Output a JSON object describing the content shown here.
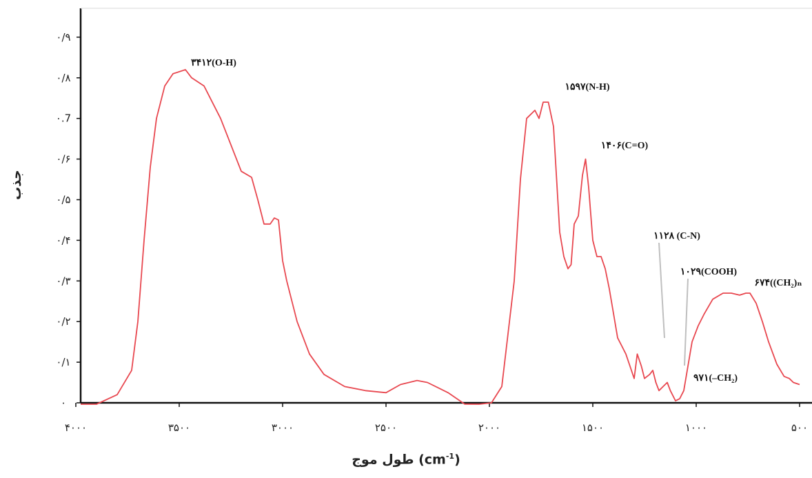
{
  "chart_data": {
    "type": "line",
    "title": "",
    "ylabel": "جذب",
    "xlabel": {
      "prefix": "طول موج (cm",
      "sup": "-1",
      "suffix": ")"
    },
    "xlim": [
      4000,
      400
    ],
    "ylim": [
      0,
      0.9
    ],
    "grid": false,
    "x_ticks": [
      {
        "value": 4000,
        "label": "۴۰۰۰"
      },
      {
        "value": 3500,
        "label": "۳۵۰۰"
      },
      {
        "value": 3000,
        "label": "۳۰۰۰"
      },
      {
        "value": 2500,
        "label": "۲۵۰۰"
      },
      {
        "value": 2000,
        "label": "۲۰۰۰"
      },
      {
        "value": 1500,
        "label": "۱۵۰۰"
      },
      {
        "value": 1000,
        "label": "۱۰۰۰"
      },
      {
        "value": 500,
        "label": "۵۰۰"
      }
    ],
    "y_ticks": [
      {
        "value": 0,
        "label": "۰"
      },
      {
        "value": 0.1,
        "label": "۰/۱"
      },
      {
        "value": 0.2,
        "label": "۰/۲"
      },
      {
        "value": 0.3,
        "label": "۰/۳"
      },
      {
        "value": 0.4,
        "label": "۰/۴"
      },
      {
        "value": 0.5,
        "label": "۰/۵"
      },
      {
        "value": 0.6,
        "label": "۰/۶"
      },
      {
        "value": 0.7,
        "label": "۰.7"
      },
      {
        "value": 0.8,
        "label": "۰/۸"
      },
      {
        "value": 0.9,
        "label": "۰/۹"
      }
    ],
    "series": [
      {
        "color": "#e8474f",
        "points": [
          [
            4000,
            -0.01
          ],
          [
            3900,
            -0.005
          ],
          [
            3800,
            0.02
          ],
          [
            3730,
            0.08
          ],
          [
            3700,
            0.2
          ],
          [
            3670,
            0.4
          ],
          [
            3640,
            0.58
          ],
          [
            3610,
            0.7
          ],
          [
            3570,
            0.78
          ],
          [
            3530,
            0.81
          ],
          [
            3470,
            0.82
          ],
          [
            3440,
            0.8
          ],
          [
            3380,
            0.78
          ],
          [
            3300,
            0.7
          ],
          [
            3200,
            0.57
          ],
          [
            3150,
            0.555
          ],
          [
            3120,
            0.5
          ],
          [
            3090,
            0.44
          ],
          [
            3060,
            0.44
          ],
          [
            3040,
            0.455
          ],
          [
            3020,
            0.45
          ],
          [
            3000,
            0.35
          ],
          [
            2980,
            0.3
          ],
          [
            2930,
            0.2
          ],
          [
            2870,
            0.12
          ],
          [
            2800,
            0.07
          ],
          [
            2700,
            0.04
          ],
          [
            2600,
            0.03
          ],
          [
            2500,
            0.025
          ],
          [
            2430,
            0.045
          ],
          [
            2350,
            0.055
          ],
          [
            2300,
            0.05
          ],
          [
            2200,
            0.025
          ],
          [
            2120,
            -0.003
          ],
          [
            2050,
            -0.005
          ],
          [
            1990,
            0.0
          ],
          [
            1940,
            0.04
          ],
          [
            1880,
            0.3
          ],
          [
            1850,
            0.55
          ],
          [
            1820,
            0.7
          ],
          [
            1780,
            0.72
          ],
          [
            1760,
            0.7
          ],
          [
            1740,
            0.74
          ],
          [
            1715,
            0.74
          ],
          [
            1690,
            0.68
          ],
          [
            1660,
            0.42
          ],
          [
            1640,
            0.36
          ],
          [
            1620,
            0.33
          ],
          [
            1605,
            0.34
          ],
          [
            1590,
            0.44
          ],
          [
            1570,
            0.46
          ],
          [
            1550,
            0.56
          ],
          [
            1535,
            0.6
          ],
          [
            1520,
            0.53
          ],
          [
            1500,
            0.4
          ],
          [
            1480,
            0.36
          ],
          [
            1460,
            0.36
          ],
          [
            1440,
            0.33
          ],
          [
            1420,
            0.28
          ],
          [
            1400,
            0.22
          ],
          [
            1380,
            0.16
          ],
          [
            1360,
            0.14
          ],
          [
            1340,
            0.12
          ],
          [
            1320,
            0.09
          ],
          [
            1300,
            0.06
          ],
          [
            1285,
            0.12
          ],
          [
            1265,
            0.09
          ],
          [
            1250,
            0.06
          ],
          [
            1225,
            0.07
          ],
          [
            1210,
            0.08
          ],
          [
            1195,
            0.05
          ],
          [
            1180,
            0.03
          ],
          [
            1160,
            0.04
          ],
          [
            1140,
            0.05
          ],
          [
            1125,
            0.03
          ],
          [
            1100,
            0.005
          ],
          [
            1080,
            0.01
          ],
          [
            1060,
            0.03
          ],
          [
            1020,
            0.15
          ],
          [
            990,
            0.19
          ],
          [
            960,
            0.22
          ],
          [
            920,
            0.255
          ],
          [
            870,
            0.27
          ],
          [
            830,
            0.27
          ],
          [
            790,
            0.265
          ],
          [
            760,
            0.27
          ],
          [
            740,
            0.27
          ],
          [
            710,
            0.245
          ],
          [
            680,
            0.2
          ],
          [
            650,
            0.15
          ],
          [
            610,
            0.095
          ],
          [
            575,
            0.065
          ],
          [
            550,
            0.06
          ],
          [
            530,
            0.05
          ],
          [
            500,
            0.045
          ]
        ]
      }
    ],
    "annotations": [
      {
        "x": 3412,
        "y": 0.82,
        "text": "۳۴۱۲(O-H)"
      },
      {
        "x": 1597,
        "y": 0.74,
        "text": "۱۵۹۷(N-H)"
      },
      {
        "x": 1406,
        "y": 0.6,
        "text": "۱۴۰۶(C=O)"
      },
      {
        "x": 1128,
        "y": 0.13,
        "text": "۱۱۲۸ (C-N)"
      },
      {
        "x": 1029,
        "y": 0.09,
        "text": "۱۰۲۹(COOH)"
      },
      {
        "x": 971,
        "y": 0.045,
        "text": "۹۷۱(–CH₂)"
      },
      {
        "x": 674,
        "y": 0.27,
        "text": "۶۷۴((CH₂)ₙ"
      }
    ]
  }
}
